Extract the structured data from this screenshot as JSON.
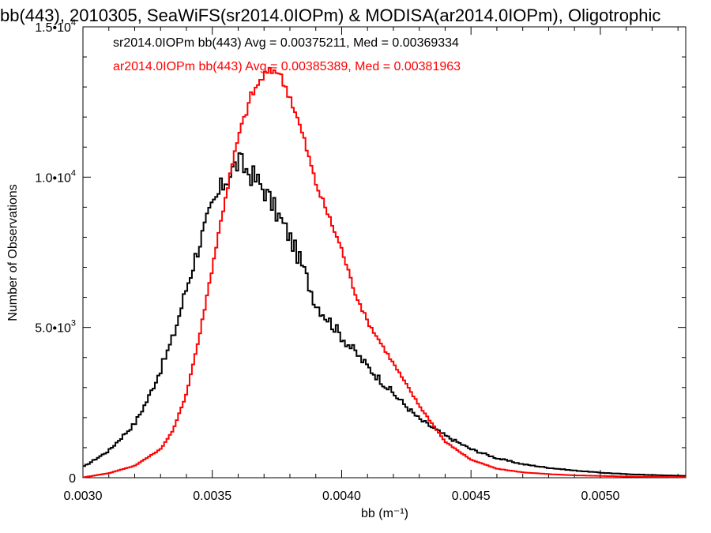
{
  "chart_data": {
    "type": "histogram",
    "title": "bb(443), 2010305, SeaWiFS(sr2014.0IOPm) & MODISA(ar2014.0IOPm), Oligotrophic",
    "xlabel": "bb (m⁻¹)",
    "ylabel": "Number of Observations",
    "xlim": [
      0.003,
      0.00533
    ],
    "ylim": [
      0,
      15000
    ],
    "x_ticks": [
      {
        "value": 0.003,
        "label": "0.0030"
      },
      {
        "value": 0.0035,
        "label": "0.0035"
      },
      {
        "value": 0.004,
        "label": "0.0040"
      },
      {
        "value": 0.0045,
        "label": "0.0045"
      },
      {
        "value": 0.005,
        "label": "0.0050"
      }
    ],
    "y_ticks": [
      {
        "value": 0,
        "mantissa": "0",
        "exp": ""
      },
      {
        "value": 5000,
        "mantissa": "5.0•10",
        "exp": "3"
      },
      {
        "value": 10000,
        "mantissa": "1.0•10",
        "exp": "4"
      },
      {
        "value": 15000,
        "mantissa": "1.5•10",
        "exp": "4"
      }
    ],
    "legend_position": "top-left",
    "series": [
      {
        "name": "sr2014.0IOPm bb(443)",
        "color": "#000000",
        "label": "sr2014.0IOPm bb(443) Avg = 0.00375211, Med = 0.00369334",
        "x": [
          0.003,
          0.0031,
          0.0032,
          0.00325,
          0.0033,
          0.00335,
          0.0034,
          0.00345,
          0.0035,
          0.00355,
          0.0036,
          0.00365,
          0.0037,
          0.00375,
          0.0038,
          0.00385,
          0.0039,
          0.004,
          0.0041,
          0.0042,
          0.0043,
          0.0044,
          0.0045,
          0.0046,
          0.0047,
          0.0048,
          0.0049,
          0.005,
          0.0051,
          0.0052,
          0.00533
        ],
        "y": [
          350,
          900,
          1800,
          2600,
          3600,
          4700,
          6300,
          7800,
          9000,
          9900,
          10500,
          10100,
          9600,
          8800,
          8000,
          7000,
          5800,
          4700,
          3700,
          2800,
          1950,
          1400,
          950,
          650,
          450,
          330,
          240,
          170,
          120,
          90,
          60
        ]
      },
      {
        "name": "ar2014.0IOPm bb(443)",
        "color": "#ff0000",
        "label": "ar2014.0IOPm bb(443) Avg = 0.00385389, Med = 0.00381963",
        "x": [
          0.003,
          0.0031,
          0.0032,
          0.0033,
          0.00335,
          0.0034,
          0.00345,
          0.0035,
          0.00355,
          0.0036,
          0.00365,
          0.0037,
          0.00375,
          0.0038,
          0.00385,
          0.0039,
          0.00395,
          0.004,
          0.00405,
          0.0041,
          0.0042,
          0.0043,
          0.0044,
          0.0045,
          0.0046,
          0.0047,
          0.0048,
          0.0049,
          0.005,
          0.0051,
          0.0052,
          0.00533
        ],
        "y": [
          10,
          150,
          400,
          950,
          1600,
          2800,
          4700,
          7000,
          9300,
          11300,
          12700,
          13400,
          13600,
          12700,
          11400,
          9800,
          8700,
          7600,
          6200,
          5200,
          3800,
          2400,
          1200,
          600,
          300,
          180,
          120,
          80,
          60,
          40,
          30,
          20
        ]
      }
    ]
  }
}
